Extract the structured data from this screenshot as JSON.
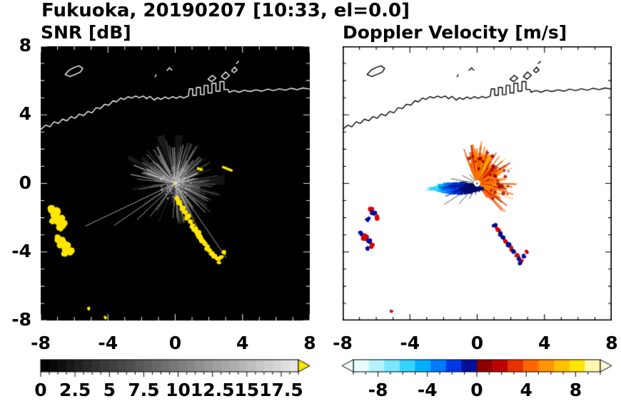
{
  "title": "Fukuoka, 20190207 [10:33, el=0.0]",
  "panels": {
    "snr": {
      "title": "SNR [dB]"
    },
    "doppler": {
      "title": "Doppler Velocity [m/s]"
    }
  },
  "axes": {
    "xticks": [
      -8,
      -4,
      0,
      4,
      8
    ],
    "yticks": [
      8,
      4,
      0,
      -4,
      -8
    ],
    "minor_step": 1,
    "range": [
      -8,
      8
    ]
  },
  "map": {
    "coastline": [
      [
        -8,
        3.15
      ],
      [
        -7.7,
        3.4
      ],
      [
        -7.45,
        3.3
      ],
      [
        -7.2,
        3.6
      ],
      [
        -6.95,
        3.5
      ],
      [
        -6.7,
        3.75
      ],
      [
        -6.45,
        3.65
      ],
      [
        -6.2,
        3.9
      ],
      [
        -5.95,
        3.8
      ],
      [
        -5.7,
        4.05
      ],
      [
        -5.45,
        3.95
      ],
      [
        -5.2,
        4.2
      ],
      [
        -4.95,
        4.12
      ],
      [
        -4.7,
        4.42
      ],
      [
        -4.45,
        4.36
      ],
      [
        -4.2,
        4.62
      ],
      [
        -3.95,
        4.56
      ],
      [
        -3.7,
        4.82
      ],
      [
        -3.5,
        4.76
      ],
      [
        -3.25,
        4.98
      ],
      [
        -3.05,
        4.9
      ],
      [
        -2.8,
        5.06
      ],
      [
        -2.6,
        4.98
      ],
      [
        -2.35,
        5.1
      ],
      [
        -2.15,
        5.0
      ],
      [
        -1.9,
        5.1
      ],
      [
        -1.7,
        4.94
      ],
      [
        -1.5,
        5.08
      ],
      [
        -1.25,
        4.86
      ],
      [
        -1.05,
        5.0
      ],
      [
        -0.85,
        4.9
      ],
      [
        -0.6,
        5.04
      ],
      [
        -0.4,
        4.94
      ],
      [
        -0.15,
        5.06
      ],
      [
        0.05,
        4.96
      ],
      [
        0.3,
        5.08
      ],
      [
        0.5,
        4.98
      ],
      [
        0.78,
        5.1
      ],
      [
        0.84,
        5.52
      ],
      [
        1.04,
        5.52
      ],
      [
        1.04,
        5.14
      ],
      [
        1.26,
        5.14
      ],
      [
        1.26,
        5.6
      ],
      [
        1.5,
        5.6
      ],
      [
        1.5,
        5.18
      ],
      [
        1.72,
        5.18
      ],
      [
        1.72,
        5.72
      ],
      [
        1.95,
        5.72
      ],
      [
        1.95,
        5.28
      ],
      [
        2.18,
        5.28
      ],
      [
        2.18,
        5.84
      ],
      [
        2.42,
        5.84
      ],
      [
        2.42,
        5.38
      ],
      [
        2.66,
        5.38
      ],
      [
        2.66,
        5.94
      ],
      [
        2.9,
        5.94
      ],
      [
        2.9,
        5.48
      ],
      [
        3.14,
        5.48
      ],
      [
        3.2,
        5.32
      ],
      [
        3.5,
        5.42
      ],
      [
        3.8,
        5.32
      ],
      [
        4.1,
        5.44
      ],
      [
        4.45,
        5.36
      ],
      [
        4.8,
        5.46
      ],
      [
        5.15,
        5.38
      ],
      [
        5.5,
        5.5
      ],
      [
        5.85,
        5.42
      ],
      [
        6.2,
        5.52
      ],
      [
        6.55,
        5.44
      ],
      [
        6.9,
        5.55
      ],
      [
        7.25,
        5.47
      ],
      [
        7.6,
        5.57
      ],
      [
        8,
        5.5
      ]
    ],
    "island": [
      [
        -6.55,
        6.35
      ],
      [
        -6.32,
        6.6
      ],
      [
        -6.02,
        6.76
      ],
      [
        -5.72,
        6.86
      ],
      [
        -5.5,
        6.72
      ],
      [
        -5.64,
        6.5
      ],
      [
        -5.94,
        6.36
      ],
      [
        -6.26,
        6.24
      ]
    ],
    "shapes": [
      [
        [
          1.95,
          6.08
        ],
        [
          2.2,
          6.3
        ],
        [
          2.42,
          6.14
        ],
        [
          2.16,
          5.94
        ]
      ],
      [
        [
          2.75,
          6.24
        ],
        [
          3.0,
          6.5
        ],
        [
          3.22,
          6.3
        ],
        [
          2.96,
          6.08
        ]
      ],
      [
        [
          3.35,
          6.58
        ],
        [
          3.52,
          6.78
        ],
        [
          3.68,
          6.62
        ],
        [
          3.5,
          6.46
        ]
      ]
    ],
    "marks": [
      [
        [
          3.62,
          6.98
        ],
        [
          3.78,
          7.14
        ]
      ],
      [
        [
          -0.5,
          6.58
        ],
        [
          -0.34,
          6.74
        ],
        [
          -0.18,
          6.6
        ]
      ],
      [
        [
          -1.2,
          6.2
        ],
        [
          -1.12,
          6.36
        ]
      ]
    ]
  },
  "chart_data": [
    {
      "type": "heatmap",
      "title": "SNR [dB]",
      "xlim": [
        -8,
        8
      ],
      "ylim": [
        -8,
        8
      ],
      "background": "#000000",
      "radar_center": [
        0,
        0
      ],
      "echo": {
        "type": "radial-streaks",
        "center": [
          0,
          0
        ],
        "max_range": 6.5
      },
      "colorbar": {
        "min": 0,
        "max": 18.75,
        "minor_step": 0.625,
        "steps": 30,
        "tick_values": [
          0,
          2.5,
          5,
          7.5,
          10,
          12.5,
          15,
          17.5
        ],
        "tick_labels": [
          "0",
          "2.5",
          "5",
          "7.5",
          "10",
          "12.5",
          "15",
          "17.5"
        ],
        "start_color": "#000000",
        "end_color": "#e6e6e6",
        "over_color": "#ffe600"
      },
      "clutter_color": "#ffe600",
      "clutter_patches": [
        [
          -7.35,
          -1.55,
          0.26
        ],
        [
          -7.12,
          -1.82,
          0.3
        ],
        [
          -6.9,
          -2.08,
          0.27
        ],
        [
          -6.65,
          -2.32,
          0.3
        ],
        [
          -6.88,
          -2.55,
          0.22
        ],
        [
          -7.32,
          -2.18,
          0.18
        ],
        [
          -7.0,
          -3.22,
          0.22
        ],
        [
          -6.76,
          -3.45,
          0.27
        ],
        [
          -6.5,
          -3.68,
          0.26
        ],
        [
          -6.28,
          -3.9,
          0.22
        ],
        [
          -6.6,
          -4.05,
          0.18
        ],
        [
          0.12,
          -0.92,
          0.14
        ],
        [
          0.28,
          -1.18,
          0.15
        ],
        [
          0.45,
          -1.45,
          0.16
        ],
        [
          0.58,
          -1.72,
          0.15
        ],
        [
          0.72,
          -1.98,
          0.17
        ],
        [
          0.9,
          -2.22,
          0.16
        ],
        [
          1.05,
          -2.45,
          0.15
        ],
        [
          1.18,
          -2.68,
          0.17
        ],
        [
          1.32,
          -2.9,
          0.16
        ],
        [
          1.45,
          -3.12,
          0.15
        ],
        [
          1.6,
          -3.32,
          0.16
        ],
        [
          1.75,
          -3.52,
          0.15
        ],
        [
          1.9,
          -3.72,
          0.16
        ],
        [
          2.05,
          -3.92,
          0.15
        ],
        [
          2.2,
          -4.1,
          0.16
        ],
        [
          2.35,
          -4.28,
          0.15
        ],
        [
          2.5,
          -4.42,
          0.14
        ],
        [
          2.72,
          -4.28,
          0.13
        ],
        [
          2.9,
          -4.0,
          0.12
        ],
        [
          2.62,
          -4.6,
          0.12
        ],
        [
          -5.15,
          -7.3,
          0.1
        ],
        [
          -4.15,
          -7.82,
          0.09
        ]
      ],
      "clutter_dashes": [
        [
          2.85,
          0.95,
          3.35,
          0.75
        ],
        [
          1.35,
          0.88,
          1.58,
          0.8
        ]
      ]
    },
    {
      "type": "heatmap",
      "title": "Doppler Velocity [m/s]",
      "xlim": [
        -8,
        8
      ],
      "ylim": [
        -8,
        8
      ],
      "background": "#ffffff",
      "radar_center": [
        0,
        0
      ],
      "colorbar": {
        "min": -10,
        "max": 10,
        "minor_step": 1,
        "tick_values": [
          -8,
          -4,
          0,
          4,
          8
        ],
        "tick_labels": [
          "-8",
          "-4",
          "0",
          "4",
          "8"
        ],
        "colors": [
          "#e8feff",
          "#b6f3ff",
          "#7ce6ff",
          "#38d2ff",
          "#00b0ff",
          "#007bff",
          "#0038e8",
          "#001099",
          "#8c0000",
          "#c00000",
          "#e83000",
          "#ff6600",
          "#ff9500",
          "#ffc100",
          "#ffe600",
          "#fff7b0"
        ],
        "under_color": "#f2ffff",
        "over_color": "#fffbdc"
      },
      "outbound_fan": {
        "angle_deg": [
          -55,
          115
        ],
        "max_extent": 2.3,
        "colors": [
          "#a80000",
          "#d82000",
          "#ff4d00",
          "#ff7400",
          "#ff9a00",
          "#ffbf00"
        ]
      },
      "inbound_lobe": {
        "center": [
          -1.3,
          -0.28
        ],
        "rx": 1.3,
        "ry": 0.32,
        "colors": [
          "#000d80",
          "#0030d8",
          "#0070ff",
          "#00b8ff",
          "#40e0ff"
        ]
      },
      "patches": [
        [
          -6.35,
          -1.5,
          0.16,
          "r"
        ],
        [
          -6.15,
          -1.74,
          0.18,
          "b"
        ],
        [
          -5.95,
          -1.98,
          0.16,
          "r"
        ],
        [
          -6.52,
          -2.1,
          0.14,
          "b"
        ],
        [
          -6.9,
          -2.9,
          0.14,
          "b"
        ],
        [
          -6.68,
          -3.14,
          0.18,
          "r"
        ],
        [
          -6.45,
          -3.38,
          0.16,
          "b"
        ],
        [
          -6.25,
          -3.6,
          0.15,
          "r"
        ],
        [
          -6.55,
          -3.78,
          0.12,
          "b"
        ],
        [
          1.05,
          -2.45,
          0.13,
          "b"
        ],
        [
          1.22,
          -2.7,
          0.14,
          "r"
        ],
        [
          1.38,
          -2.93,
          0.13,
          "b"
        ],
        [
          1.54,
          -3.16,
          0.14,
          "b"
        ],
        [
          1.7,
          -3.38,
          0.13,
          "r"
        ],
        [
          1.86,
          -3.59,
          0.14,
          "b"
        ],
        [
          2.02,
          -3.79,
          0.13,
          "r"
        ],
        [
          2.18,
          -3.99,
          0.14,
          "b"
        ],
        [
          2.34,
          -4.18,
          0.13,
          "r"
        ],
        [
          2.5,
          -4.37,
          0.13,
          "b"
        ],
        [
          2.64,
          -4.52,
          0.12,
          "r"
        ],
        [
          2.78,
          -4.27,
          0.12,
          "b"
        ],
        [
          2.94,
          -4.0,
          0.11,
          "r"
        ],
        [
          2.57,
          -4.67,
          0.11,
          "b"
        ],
        [
          -5.1,
          -7.45,
          0.09,
          "r"
        ]
      ]
    }
  ]
}
